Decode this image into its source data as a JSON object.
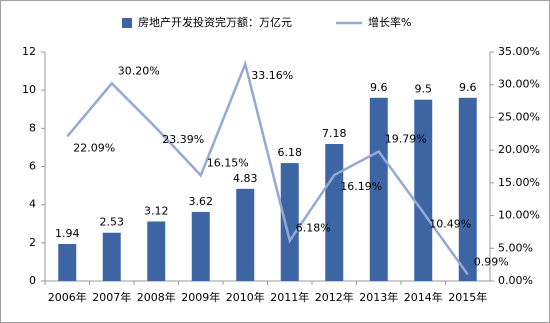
{
  "chart_data": {
    "type": "bar-line",
    "categories": [
      "2006年",
      "2007年",
      "2008年",
      "2009年",
      "2010年",
      "2011年",
      "2012年",
      "2013年",
      "2014年",
      "2015年"
    ],
    "series": [
      {
        "name": "房地产开发投资完万额：万亿元",
        "type": "bar",
        "color": "#3e65a3",
        "values": [
          1.94,
          2.53,
          3.12,
          3.62,
          4.83,
          6.18,
          7.18,
          9.6,
          9.5,
          9.6
        ]
      },
      {
        "name": "增长率%",
        "type": "line",
        "axis": "y2",
        "color": "#94a9d3",
        "values": [
          22.09,
          30.2,
          23.39,
          16.15,
          33.16,
          6.18,
          16.19,
          19.79,
          10.49,
          0.99
        ],
        "value_labels": [
          "22.09%",
          "30.20%",
          "23.39%",
          "16.15%",
          "33.16%",
          "6.18%",
          "16.19%",
          "19.79%",
          "10.49%",
          "0.99%"
        ]
      }
    ],
    "ylim": [
      0,
      12
    ],
    "yticks": [
      0,
      2,
      4,
      6,
      8,
      10,
      12
    ],
    "y2lim": [
      0,
      35
    ],
    "y2ticks": [
      {
        "value": 0,
        "label": "0.00%"
      },
      {
        "value": 5,
        "label": "5.00%"
      },
      {
        "value": 10,
        "label": "10.00%"
      },
      {
        "value": 15,
        "label": "15.00%"
      },
      {
        "value": 20,
        "label": "20.00%"
      },
      {
        "value": 25,
        "label": "25.00%"
      },
      {
        "value": 30,
        "label": "30.00%"
      },
      {
        "value": 35,
        "label": "35.00%"
      }
    ],
    "legend": "top",
    "grid": false
  }
}
